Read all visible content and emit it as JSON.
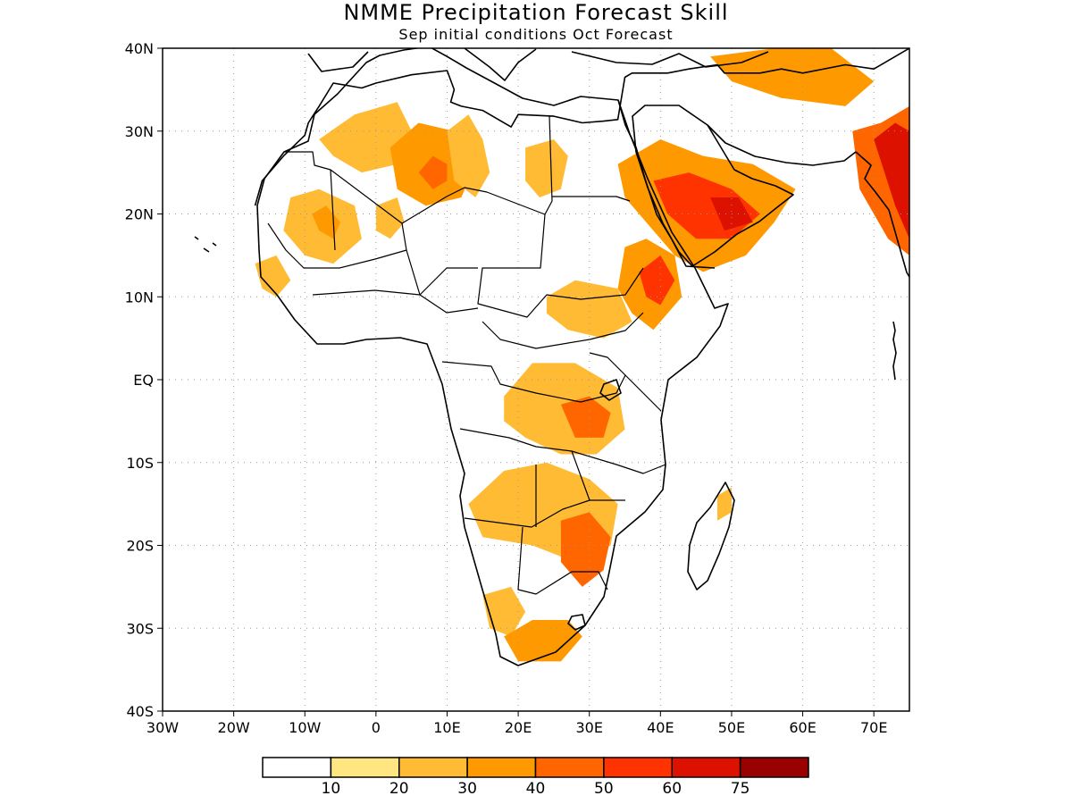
{
  "map": {
    "title": "NMME Precipitation Forecast Skill",
    "subtitle": "Sep initial conditions  Oct Forecast",
    "lon_range": [
      -30,
      75
    ],
    "lat_range": [
      -40,
      40
    ],
    "x_ticks": [
      {
        "lon": -30,
        "label": "30W"
      },
      {
        "lon": -20,
        "label": "20W"
      },
      {
        "lon": -10,
        "label": "10W"
      },
      {
        "lon": 0,
        "label": "0"
      },
      {
        "lon": 10,
        "label": "10E"
      },
      {
        "lon": 20,
        "label": "20E"
      },
      {
        "lon": 30,
        "label": "30E"
      },
      {
        "lon": 40,
        "label": "40E"
      },
      {
        "lon": 50,
        "label": "50E"
      },
      {
        "lon": 60,
        "label": "60E"
      },
      {
        "lon": 70,
        "label": "70E"
      }
    ],
    "y_ticks": [
      {
        "lat": 40,
        "label": "40N"
      },
      {
        "lat": 30,
        "label": "30N"
      },
      {
        "lat": 20,
        "label": "20N"
      },
      {
        "lat": 10,
        "label": "10N"
      },
      {
        "lat": 0,
        "label": "EQ"
      },
      {
        "lat": -10,
        "label": "10S"
      },
      {
        "lat": -20,
        "label": "20S"
      },
      {
        "lat": -30,
        "label": "30S"
      },
      {
        "lat": -40,
        "label": "40S"
      }
    ],
    "skill_regions": [
      {
        "name": "nw-sahara",
        "points": [
          [
            -8,
            29
          ],
          [
            -3,
            32
          ],
          [
            3,
            33.5
          ],
          [
            5,
            30
          ],
          [
            3,
            26
          ],
          [
            -2,
            25
          ],
          [
            -6,
            27
          ]
        ],
        "value": 25
      },
      {
        "name": "algeria-libya",
        "points": [
          [
            2,
            28
          ],
          [
            6,
            31
          ],
          [
            11,
            30
          ],
          [
            14,
            26
          ],
          [
            12,
            22
          ],
          [
            7,
            21
          ],
          [
            3,
            23
          ]
        ],
        "value": 35
      },
      {
        "name": "algeria-core",
        "points": [
          [
            6,
            25
          ],
          [
            8,
            27
          ],
          [
            10,
            26
          ],
          [
            10,
            24
          ],
          [
            8,
            23
          ]
        ],
        "value": 45
      },
      {
        "name": "libya-chad",
        "points": [
          [
            10,
            30
          ],
          [
            13,
            32
          ],
          [
            15,
            29
          ],
          [
            16,
            25
          ],
          [
            14,
            22
          ],
          [
            11,
            24
          ]
        ],
        "value": 25
      },
      {
        "name": "egypt",
        "points": [
          [
            21,
            28
          ],
          [
            25,
            29
          ],
          [
            27,
            27
          ],
          [
            26,
            23
          ],
          [
            23,
            22
          ],
          [
            21,
            24
          ]
        ],
        "value": 20
      },
      {
        "name": "mauritania-mali",
        "points": [
          [
            -12,
            22
          ],
          [
            -8,
            23
          ],
          [
            -3,
            21
          ],
          [
            -2,
            17
          ],
          [
            -6,
            14
          ],
          [
            -10,
            15
          ],
          [
            -13,
            18
          ]
        ],
        "value": 25
      },
      {
        "name": "mali-core",
        "points": [
          [
            -9,
            20
          ],
          [
            -7,
            21
          ],
          [
            -5,
            19
          ],
          [
            -6,
            17
          ],
          [
            -8,
            18
          ]
        ],
        "value": 35
      },
      {
        "name": "niger-spot",
        "points": [
          [
            0,
            21
          ],
          [
            3,
            22
          ],
          [
            4,
            19
          ],
          [
            2,
            17
          ],
          [
            0,
            18
          ]
        ],
        "value": 20
      },
      {
        "name": "west-coast",
        "points": [
          [
            -17,
            14
          ],
          [
            -14,
            15
          ],
          [
            -12,
            12
          ],
          [
            -14,
            10
          ],
          [
            -16,
            11
          ]
        ],
        "value": 20
      },
      {
        "name": "arabia-wide",
        "points": [
          [
            34,
            26
          ],
          [
            40,
            29
          ],
          [
            46,
            27
          ],
          [
            53,
            26
          ],
          [
            59,
            23
          ],
          [
            56,
            19
          ],
          [
            52,
            15
          ],
          [
            46,
            13
          ],
          [
            42,
            15
          ],
          [
            38,
            19
          ],
          [
            35,
            22
          ]
        ],
        "value": 35
      },
      {
        "name": "arabia-core",
        "points": [
          [
            39,
            24
          ],
          [
            44,
            25
          ],
          [
            50,
            23
          ],
          [
            54,
            20
          ],
          [
            50,
            17
          ],
          [
            45,
            17
          ],
          [
            41,
            20
          ]
        ],
        "value": 50
      },
      {
        "name": "arabia-max",
        "points": [
          [
            47,
            22
          ],
          [
            51,
            22
          ],
          [
            53,
            19
          ],
          [
            49,
            18
          ]
        ],
        "value": 60
      },
      {
        "name": "india-nw",
        "points": [
          [
            67,
            30
          ],
          [
            71,
            31
          ],
          [
            75,
            33
          ],
          [
            75,
            15
          ],
          [
            72,
            17
          ],
          [
            68,
            23
          ]
        ],
        "value": 40
      },
      {
        "name": "india-core",
        "points": [
          [
            70,
            29
          ],
          [
            73,
            31
          ],
          [
            75,
            30
          ],
          [
            75,
            17
          ],
          [
            73,
            21
          ]
        ],
        "value": 60
      },
      {
        "name": "iran-north",
        "points": [
          [
            47,
            39
          ],
          [
            56,
            40
          ],
          [
            64,
            40
          ],
          [
            70,
            36
          ],
          [
            66,
            33
          ],
          [
            57,
            34
          ],
          [
            50,
            36
          ]
        ],
        "value": 30
      },
      {
        "name": "ethiopia",
        "points": [
          [
            35,
            16
          ],
          [
            38,
            17
          ],
          [
            42,
            15
          ],
          [
            43,
            10
          ],
          [
            39,
            6
          ],
          [
            36,
            8
          ],
          [
            34,
            11
          ]
        ],
        "value": 35
      },
      {
        "name": "ethiopia-core",
        "points": [
          [
            37,
            13
          ],
          [
            40,
            15
          ],
          [
            42,
            12
          ],
          [
            40,
            9
          ],
          [
            38,
            10
          ]
        ],
        "value": 55
      },
      {
        "name": "sudan-ssudan",
        "points": [
          [
            24,
            10
          ],
          [
            28,
            12
          ],
          [
            34,
            11
          ],
          [
            36,
            7
          ],
          [
            32,
            5
          ],
          [
            27,
            6
          ],
          [
            24,
            8
          ]
        ],
        "value": 25
      },
      {
        "name": "congo-tz",
        "points": [
          [
            18,
            -2
          ],
          [
            22,
            2
          ],
          [
            28,
            2
          ],
          [
            34,
            -1
          ],
          [
            35,
            -6
          ],
          [
            31,
            -9
          ],
          [
            26,
            -9
          ],
          [
            21,
            -7
          ],
          [
            18,
            -5
          ]
        ],
        "value": 20
      },
      {
        "name": "tz-core",
        "points": [
          [
            26,
            -3
          ],
          [
            30,
            -2
          ],
          [
            33,
            -4
          ],
          [
            32,
            -7
          ],
          [
            28,
            -7
          ]
        ],
        "value": 40
      },
      {
        "name": "angola-zambia",
        "points": [
          [
            13,
            -15
          ],
          [
            18,
            -11
          ],
          [
            24,
            -10
          ],
          [
            30,
            -12
          ],
          [
            34,
            -15
          ],
          [
            33,
            -20
          ],
          [
            28,
            -22
          ],
          [
            22,
            -20
          ],
          [
            15,
            -19
          ]
        ],
        "value": 20
      },
      {
        "name": "zim-moz",
        "points": [
          [
            26,
            -17
          ],
          [
            30,
            -16
          ],
          [
            33,
            -19
          ],
          [
            32,
            -23
          ],
          [
            29,
            -25
          ],
          [
            26,
            -22
          ]
        ],
        "value": 40
      },
      {
        "name": "south-africa-w",
        "points": [
          [
            15,
            -26
          ],
          [
            19,
            -25
          ],
          [
            21,
            -28
          ],
          [
            19,
            -31
          ],
          [
            16,
            -30
          ]
        ],
        "value": 25
      },
      {
        "name": "south-africa-s",
        "points": [
          [
            18,
            -31
          ],
          [
            22,
            -29
          ],
          [
            27,
            -29
          ],
          [
            29,
            -31
          ],
          [
            26,
            -34
          ],
          [
            20,
            -34
          ]
        ],
        "value": 30
      },
      {
        "name": "madagascar-spot",
        "points": [
          [
            48,
            -14
          ],
          [
            50,
            -13
          ],
          [
            50,
            -16
          ],
          [
            48,
            -17
          ]
        ],
        "value": 20
      }
    ],
    "coastline": [
      [
        -17,
        21
      ],
      [
        -16,
        24
      ],
      [
        -13,
        27
      ],
      [
        -10,
        29.5
      ],
      [
        -9.5,
        31
      ],
      [
        -8,
        33
      ],
      [
        -6,
        35.8
      ],
      [
        -2,
        35.2
      ],
      [
        0,
        35.8
      ],
      [
        5,
        36.8
      ],
      [
        10,
        37.3
      ],
      [
        11,
        35
      ],
      [
        10.5,
        33.5
      ],
      [
        12,
        33
      ],
      [
        15,
        32.5
      ],
      [
        19,
        30.5
      ],
      [
        20,
        32
      ],
      [
        25,
        31.8
      ],
      [
        29,
        31
      ],
      [
        32,
        31.2
      ],
      [
        34,
        31.4
      ],
      [
        35,
        36.5
      ],
      [
        36,
        37
      ],
      [
        41,
        37
      ],
      [
        44,
        37.5
      ],
      [
        48,
        38
      ],
      [
        49,
        37
      ],
      [
        54,
        37
      ],
      [
        57,
        37.5
      ],
      [
        60,
        37
      ],
      [
        66,
        38
      ],
      [
        70,
        37.5
      ],
      [
        75,
        40
      ]
    ],
    "colorbar": {
      "colors": [
        "#ffffff",
        "#ffe680",
        "#ffbb33",
        "#ff9900",
        "#ff6600",
        "#ff3300",
        "#dd1100",
        "#990000"
      ],
      "labels": [
        "10",
        "20",
        "30",
        "40",
        "50",
        "60",
        "75"
      ]
    }
  }
}
